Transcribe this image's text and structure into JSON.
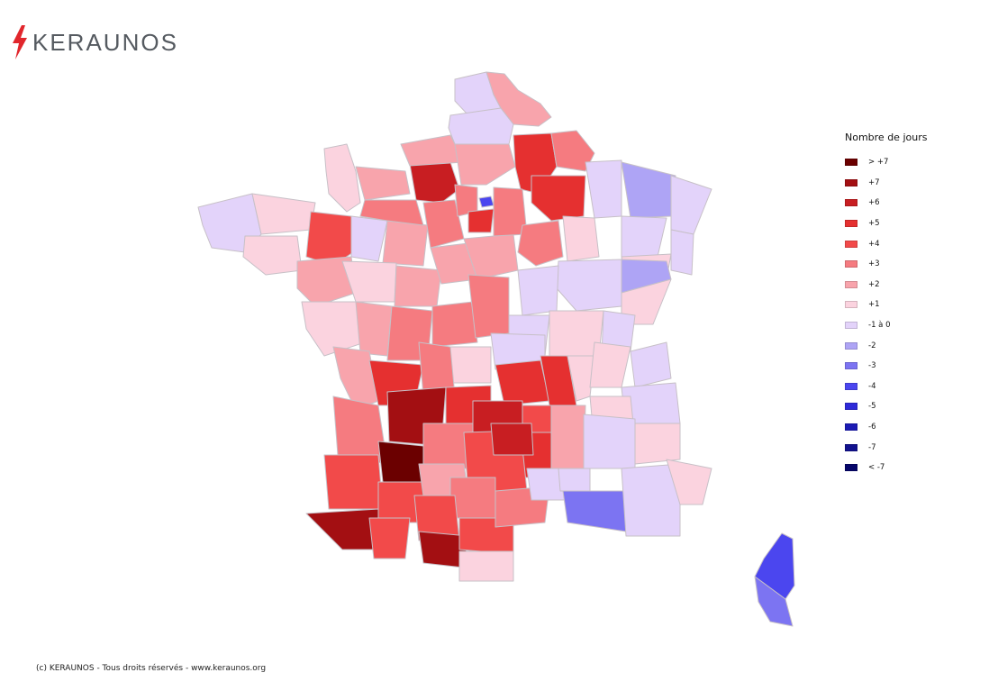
{
  "brand": {
    "name": "KERAUNOS",
    "icon": "lightning-bolt-icon",
    "text_color": "#555a60",
    "bolt_color": "#e1262c"
  },
  "legend": {
    "title": "Nombre de jours",
    "items": [
      {
        "label": "> +7",
        "color": "#6b0000"
      },
      {
        "label": "+7",
        "color": "#a30f12"
      },
      {
        "label": "+6",
        "color": "#c81e22"
      },
      {
        "label": "+5",
        "color": "#e53030"
      },
      {
        "label": "+4",
        "color": "#f24a4a"
      },
      {
        "label": "+3",
        "color": "#f57b80"
      },
      {
        "label": "+2",
        "color": "#f8a4ac"
      },
      {
        "label": "+1",
        "color": "#fbd3df"
      },
      {
        "label": "-1 à 0",
        "color": "#e3d3fa"
      },
      {
        "label": "-2",
        "color": "#aea4f5"
      },
      {
        "label": "-3",
        "color": "#7c74f2"
      },
      {
        "label": "-4",
        "color": "#4b46ef"
      },
      {
        "label": "-5",
        "color": "#2e2ad8"
      },
      {
        "label": "-6",
        "color": "#1c1bb4"
      },
      {
        "label": "-7",
        "color": "#12128e"
      },
      {
        "label": "< -7",
        "color": "#06066a"
      }
    ]
  },
  "copyright": "(c) KERAUNOS - Tous droits réservés - www.keraunos.org"
}
